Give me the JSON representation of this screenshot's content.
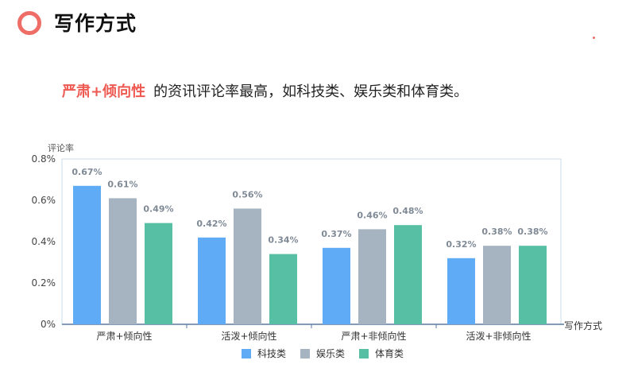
{
  "header": {
    "title": "写作方式"
  },
  "headline": {
    "highlight": "严肃+倾向性",
    "rest": "的资讯评论率最高，如科技类、娱乐类和体育类。"
  },
  "colors": {
    "accent": "#ee6d67",
    "highlight": "#ee5a52"
  },
  "chart_data": {
    "type": "bar",
    "ylabel": "评论率",
    "xlabel": "写作方式",
    "categories": [
      "严肃+倾向性",
      "活泼+倾向性",
      "严肃+非倾向性",
      "活泼+非倾向性"
    ],
    "series": [
      {
        "name": "科技类",
        "color": "#5fabf6",
        "values": [
          0.67,
          0.42,
          0.37,
          0.32
        ]
      },
      {
        "name": "娱乐类",
        "color": "#a6b4c2",
        "values": [
          0.61,
          0.56,
          0.46,
          0.38
        ]
      },
      {
        "name": "体育类",
        "color": "#57bfa4",
        "values": [
          0.49,
          0.34,
          0.48,
          0.38
        ]
      }
    ],
    "data_labels": [
      [
        "0.67%",
        "0.42%",
        "0.37%",
        "0.32%"
      ],
      [
        "0.61%",
        "0.56%",
        "0.46%",
        "0.38%"
      ],
      [
        "0.49%",
        "0.34%",
        "0.48%",
        "0.38%"
      ]
    ],
    "yticks": [
      0,
      0.2,
      0.4,
      0.6,
      0.8
    ],
    "ytick_labels": [
      "0%",
      "0.2%",
      "0.4%",
      "0.6%",
      "0.8%"
    ],
    "ylim": [
      0,
      0.8
    ],
    "legend_position": "bottom",
    "grid": false
  }
}
